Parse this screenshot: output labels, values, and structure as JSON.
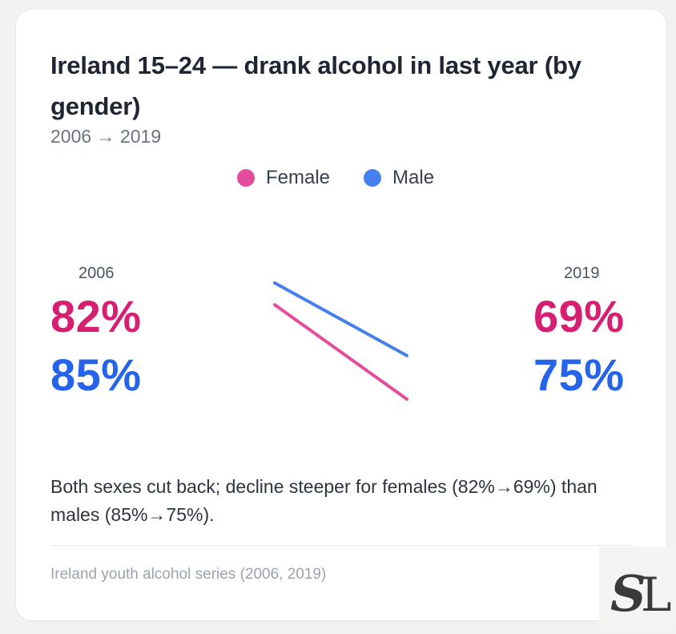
{
  "chart_data": {
    "type": "slope",
    "title": "Ireland 15–24 — drank alcohol in last year (by gender)",
    "subtitle": "2006 → 2019",
    "x": [
      "2006",
      "2019"
    ],
    "unit": "%",
    "legend": {
      "placement": "top-center"
    },
    "series": [
      {
        "name": "Female",
        "color": "#e44d9c",
        "text_color": "#d81e72",
        "values": [
          82,
          69
        ],
        "labels": [
          "82%",
          "69%"
        ]
      },
      {
        "name": "Male",
        "color": "#4580ee",
        "text_color": "#2563eb",
        "values": [
          85,
          75
        ],
        "labels": [
          "85%",
          "75%"
        ]
      }
    ],
    "annotation": "Both sexes cut back; decline steeper for females (82%→69%) than males (85%→75%).",
    "source": "Ireland youth alcohol series (2006, 2019)"
  },
  "logo": {
    "text": "SL",
    "icon": "sl-monogram-logo"
  }
}
